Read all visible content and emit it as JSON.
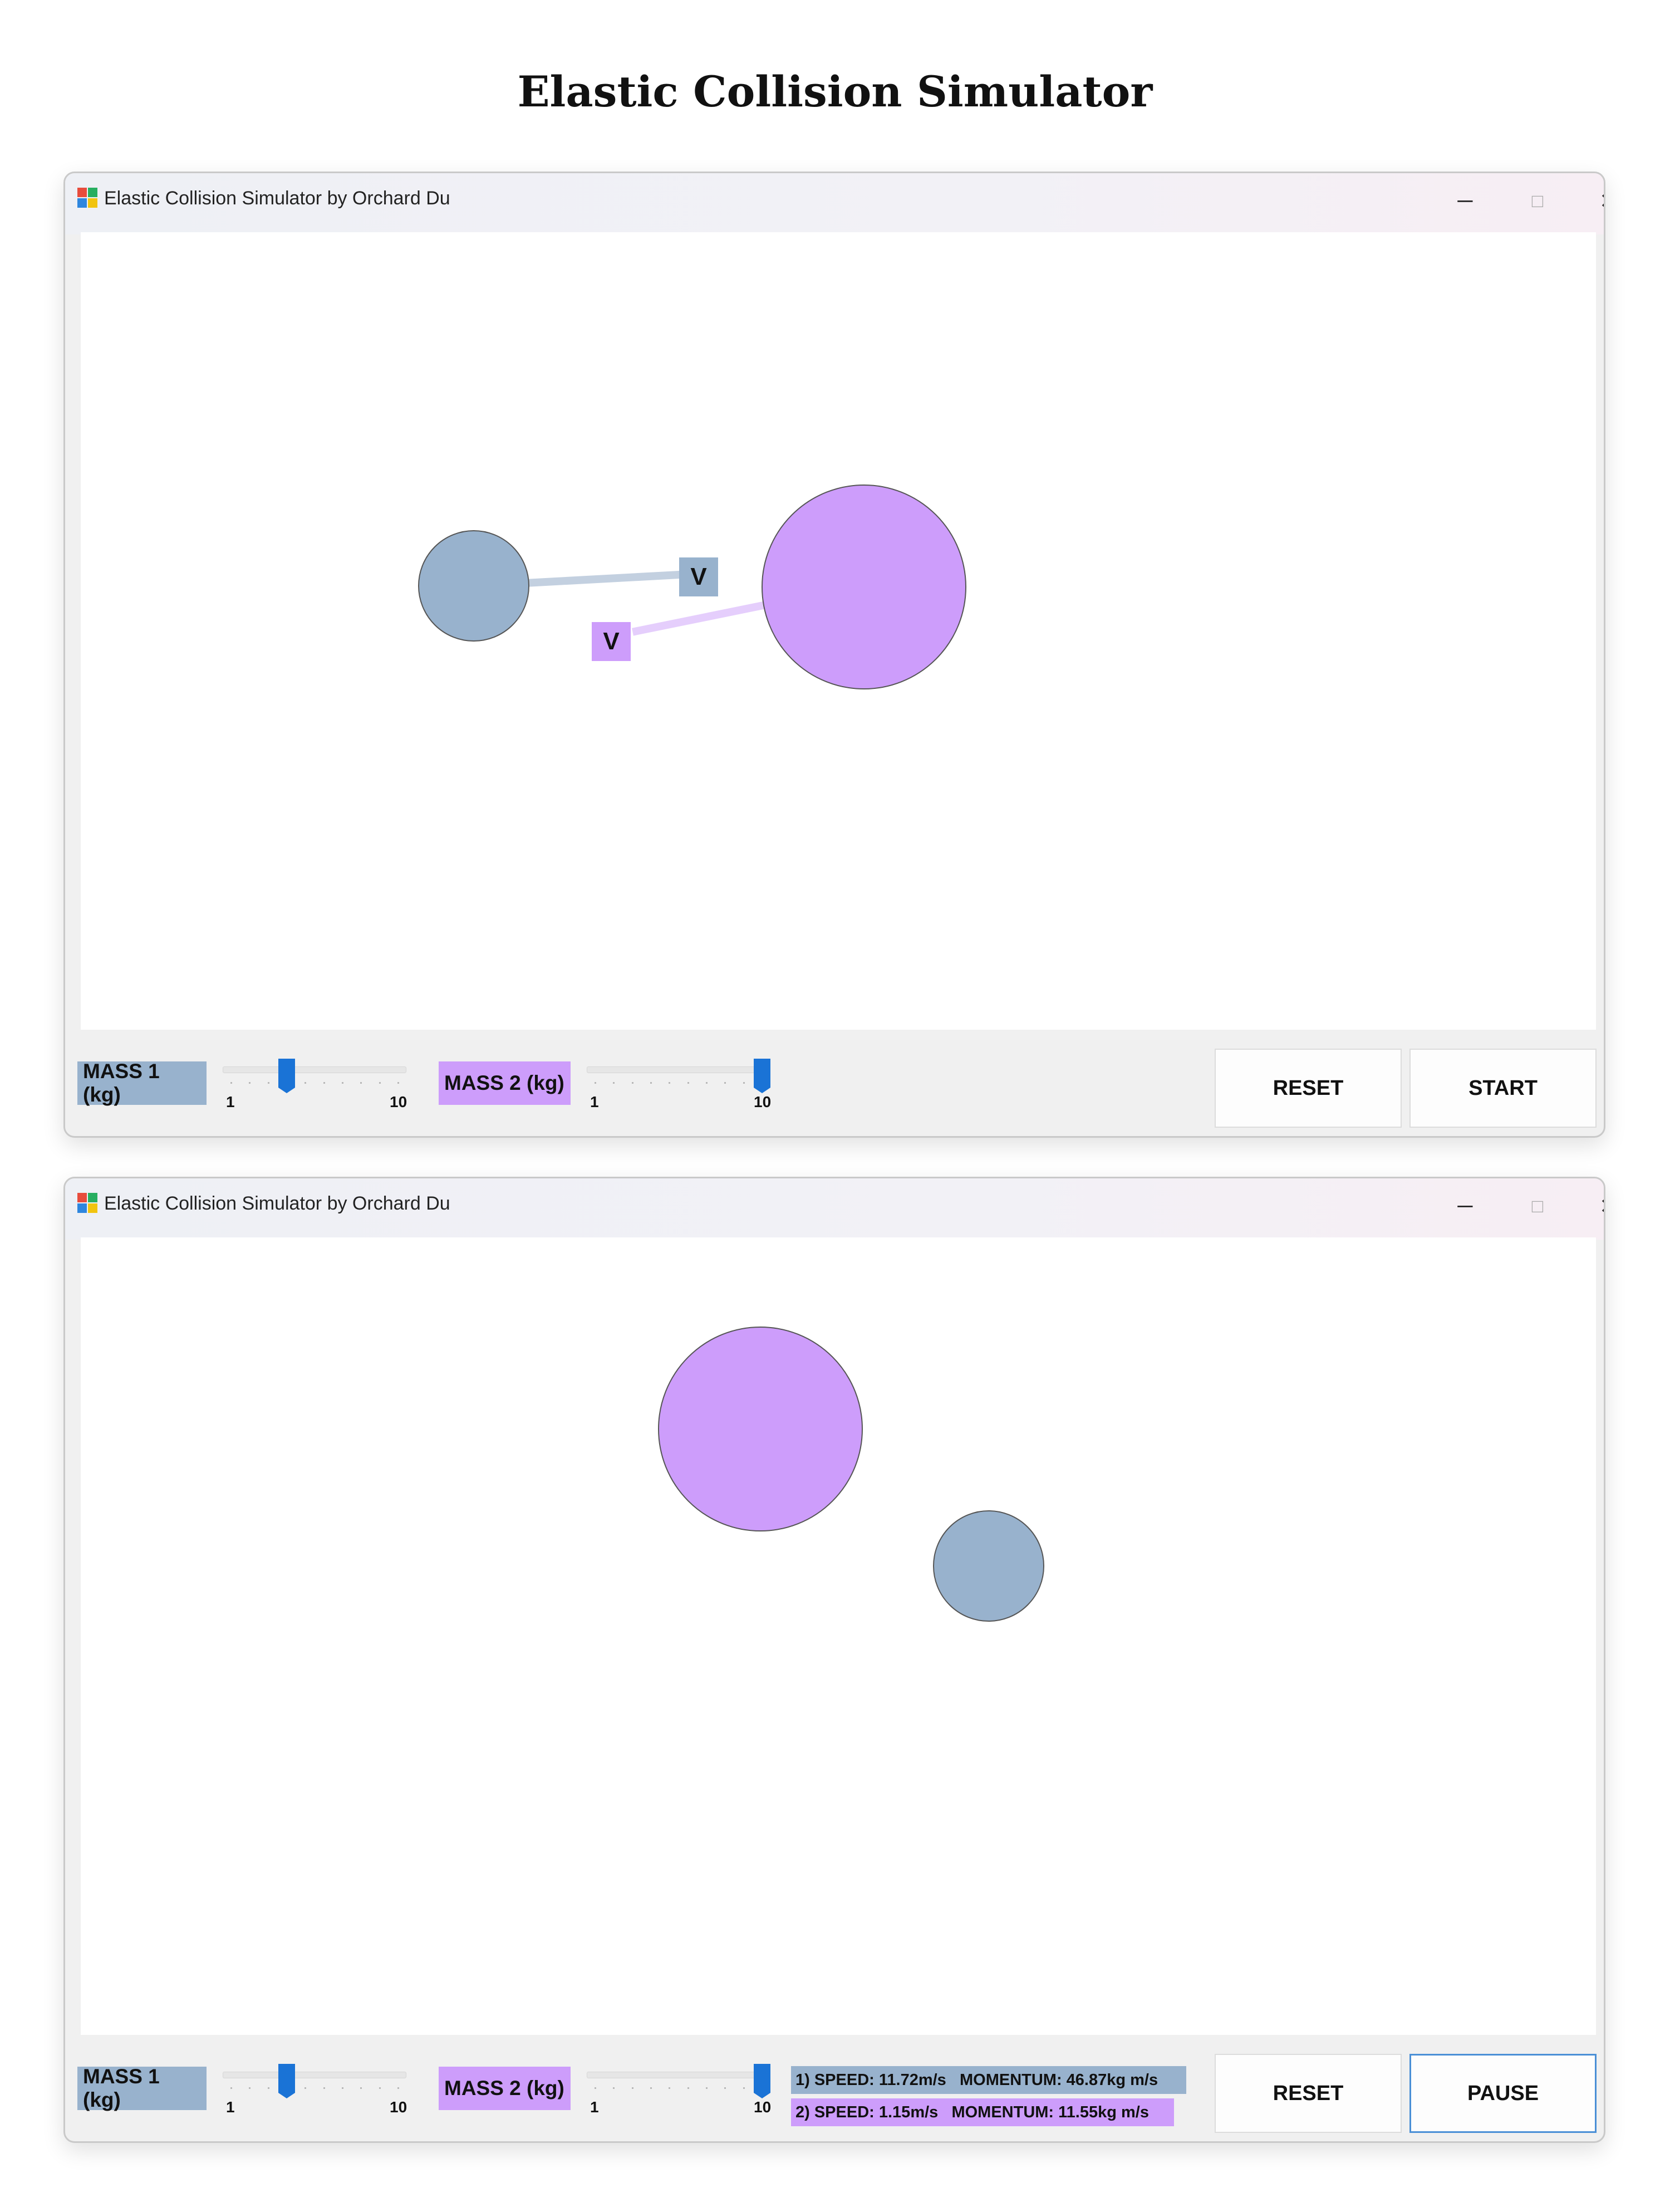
{
  "page": {
    "title": "Elastic Collision Simulator"
  },
  "colors": {
    "mass1": "#98b2cd",
    "mass2": "#cd9dfb",
    "slider_thumb": "#1a73d6",
    "canvas": "#ffffff"
  },
  "windows": [
    {
      "title": "Elastic Collision Simulator by Orchard Du",
      "controls": {
        "minimize": "─",
        "maximize": "□",
        "close": "✕"
      },
      "velocity_label_1": "V",
      "velocity_label_2": "V",
      "mass1": {
        "label": "MASS 1 (kg)",
        "min": "1",
        "max": "10",
        "value": 4
      },
      "mass2": {
        "label": "MASS 2 (kg)",
        "min": "1",
        "max": "10",
        "value": 10
      },
      "buttons": {
        "reset": "RESET",
        "start": "START"
      }
    },
    {
      "title": "Elastic Collision Simulator by Orchard Du",
      "controls": {
        "minimize": "─",
        "maximize": "□",
        "close": "✕"
      },
      "mass1": {
        "label": "MASS 1 (kg)",
        "min": "1",
        "max": "10",
        "value": 4
      },
      "mass2": {
        "label": "MASS 2 (kg)",
        "min": "1",
        "max": "10",
        "value": 10
      },
      "stats": {
        "ball1": "1) SPEED: 11.72m/s   MOMENTUM: 46.87kg m/s",
        "ball2": "2) SPEED: 1.15m/s   MOMENTUM: 11.55kg m/s"
      },
      "buttons": {
        "reset": "RESET",
        "pause": "PAUSE"
      }
    }
  ]
}
